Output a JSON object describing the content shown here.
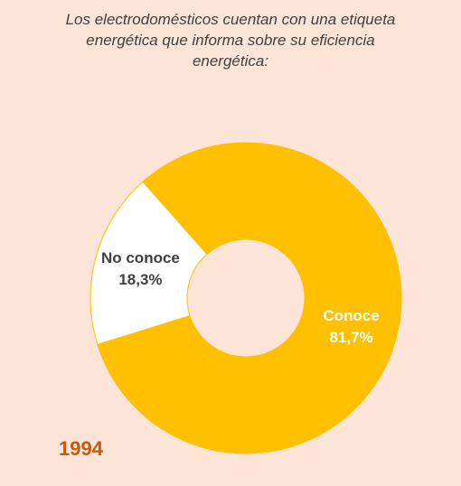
{
  "chart_data": {
    "type": "donut",
    "title": "Los electrodomésticos cuentan con una etiqueta energética que informa sobre su eficiencia energética:",
    "categories": [
      "Conoce",
      "No conoce"
    ],
    "values": [
      81.7,
      18.3
    ],
    "value_labels": [
      "81,7%",
      "18,3%"
    ],
    "colors": [
      "#ffc000",
      "#ffffff"
    ],
    "label_colors": [
      "#ffffff",
      "#404040"
    ],
    "annotation": "1994"
  }
}
